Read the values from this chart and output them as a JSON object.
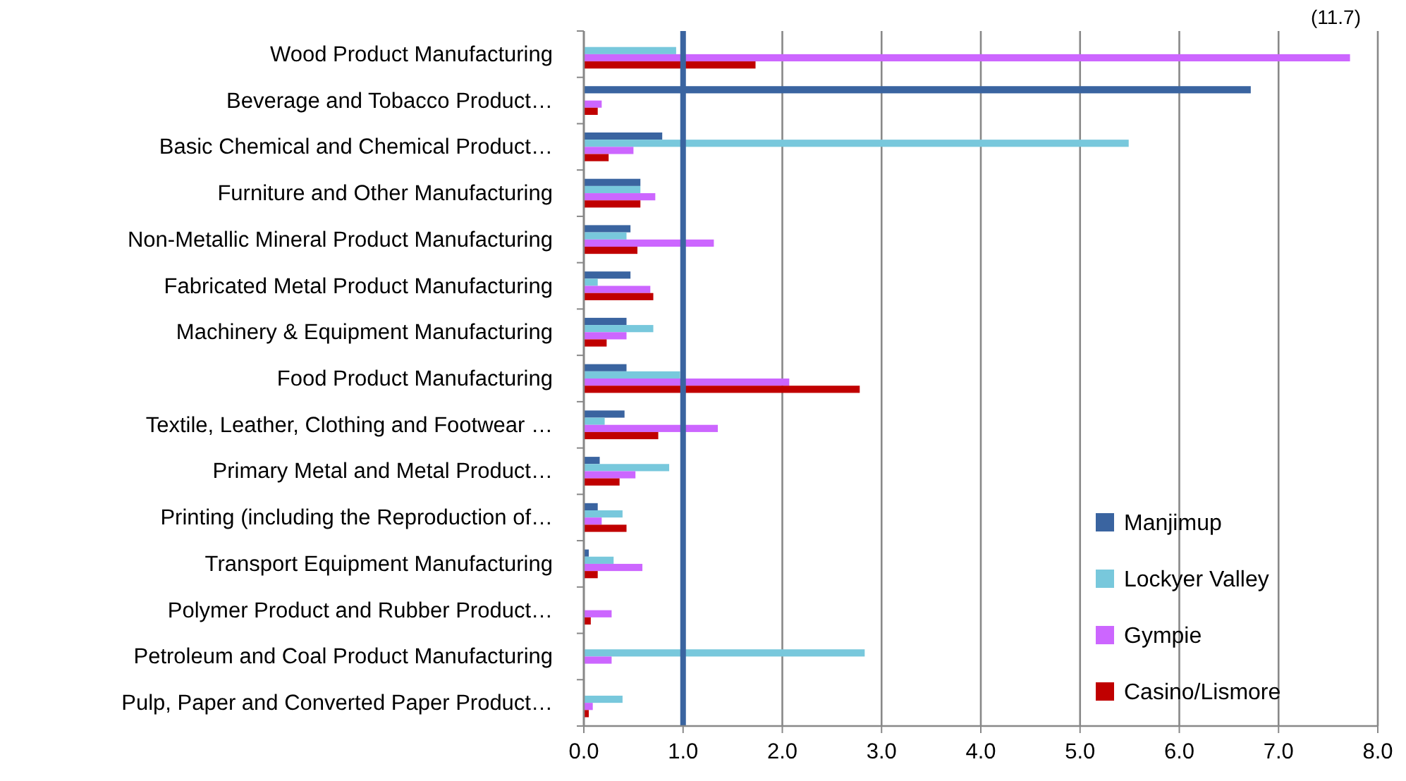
{
  "chart_data": {
    "type": "bar",
    "orientation": "horizontal",
    "categories": [
      "Wood Product Manufacturing",
      "Beverage and Tobacco Product…",
      "Basic Chemical and Chemical Product…",
      "Furniture and Other Manufacturing",
      "Non-Metallic Mineral Product Manufacturing",
      "Fabricated Metal Product Manufacturing",
      "Machinery & Equipment Manufacturing",
      "Food Product Manufacturing",
      "Textile, Leather, Clothing and Footwear …",
      "Primary Metal and Metal Product…",
      "Printing (including the Reproduction of…",
      "Transport Equipment Manufacturing",
      "Polymer Product and Rubber Product…",
      "Petroleum and Coal Product Manufacturing",
      "Pulp, Paper and Converted Paper Product…"
    ],
    "series": [
      {
        "name": "Manjimup",
        "color": "#3a64a0",
        "values": [
          null,
          6.72,
          0.79,
          0.57,
          0.47,
          0.47,
          0.43,
          0.43,
          0.41,
          0.16,
          0.14,
          0.05,
          null,
          null,
          null
        ]
      },
      {
        "name": "Lockyer Valley",
        "color": "#78c8dc",
        "values": [
          0.93,
          null,
          5.49,
          0.57,
          0.43,
          0.14,
          0.7,
          0.97,
          0.21,
          0.86,
          0.39,
          0.3,
          null,
          2.83,
          0.39
        ]
      },
      {
        "name": "Gympie",
        "color": "#cc66ff",
        "values": [
          7.72,
          0.18,
          0.5,
          0.72,
          1.31,
          0.67,
          0.43,
          2.07,
          1.35,
          0.52,
          0.18,
          0.59,
          0.28,
          0.28,
          0.09
        ]
      },
      {
        "name": "Casino/Lismore",
        "color": "#c00000",
        "values": [
          1.73,
          0.14,
          0.25,
          0.57,
          0.54,
          0.7,
          0.23,
          2.78,
          0.75,
          0.36,
          0.43,
          0.14,
          0.07,
          null,
          0.05
        ]
      }
    ],
    "xlim": [
      0,
      8
    ],
    "xticks": [
      {
        "value": 0,
        "label": "0.0"
      },
      {
        "value": 1,
        "label": "1.0"
      },
      {
        "value": 2,
        "label": "2.0"
      },
      {
        "value": 3,
        "label": "3.0"
      },
      {
        "value": 4,
        "label": "4.0"
      },
      {
        "value": 5,
        "label": "5.0"
      },
      {
        "value": 6,
        "label": "6.0"
      },
      {
        "value": 7,
        "label": "7.0"
      },
      {
        "value": 8,
        "label": "8.0"
      }
    ],
    "ref_lines": [
      {
        "axis": "x",
        "value": 1,
        "color": "#3a64a0"
      }
    ],
    "annotations": [
      "(11.7)"
    ],
    "grid": "x",
    "legend": "bottom right"
  }
}
